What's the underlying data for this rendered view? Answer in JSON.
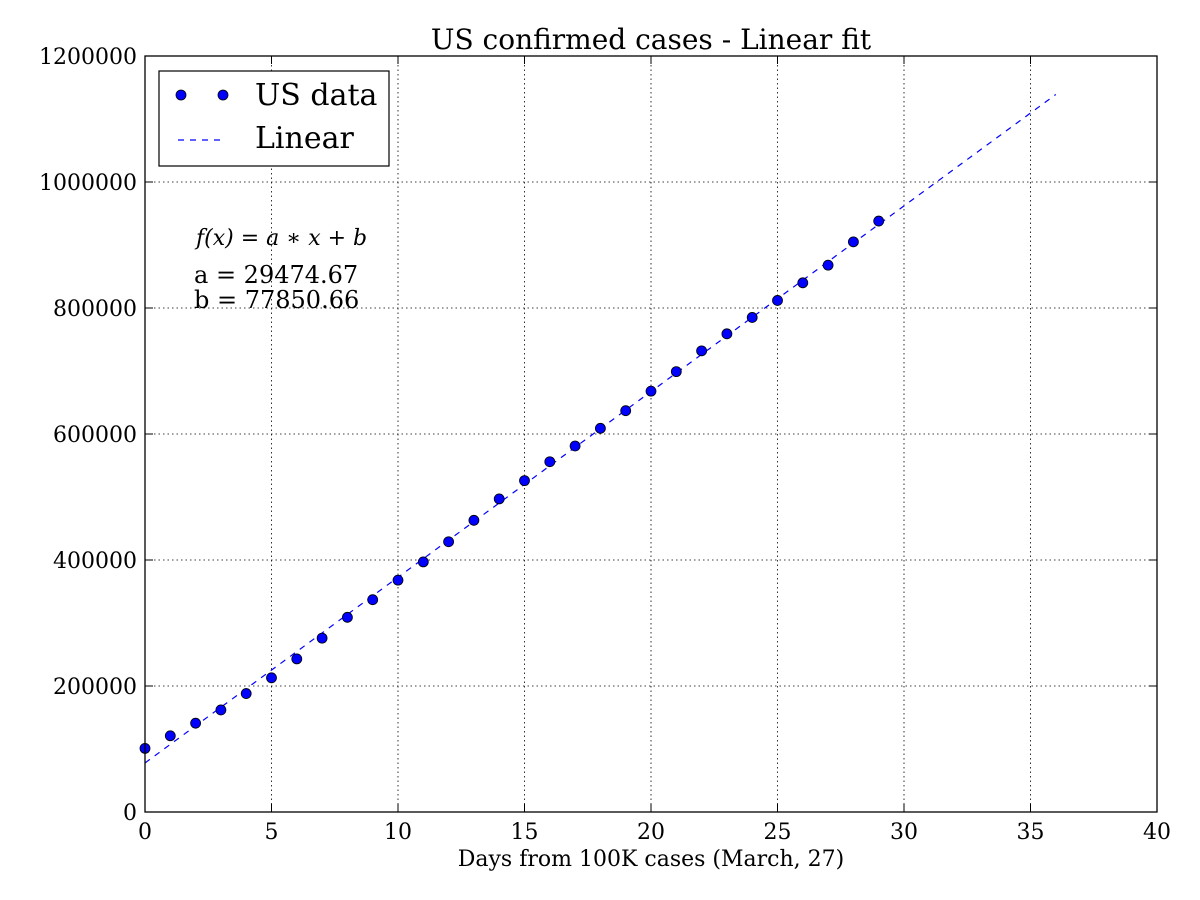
{
  "chart_data": {
    "type": "scatter",
    "title": "US confirmed cases - Linear fit",
    "xlabel": "Days from 100K cases (March, 27)",
    "ylabel": "",
    "xlim": [
      0,
      40
    ],
    "ylim": [
      0,
      1200000
    ],
    "x_ticks": [
      "0",
      "5",
      "10",
      "15",
      "20",
      "25",
      "30",
      "35",
      "40"
    ],
    "y_ticks": [
      "0",
      "200000",
      "400000",
      "600000",
      "800000",
      "1000000",
      "1200000"
    ],
    "grid": true,
    "legend_position": "top-left",
    "series": [
      {
        "name": "US data",
        "style": "markers",
        "color": "#0000ff",
        "x": [
          0,
          1,
          2,
          3,
          4,
          5,
          6,
          7,
          8,
          9,
          10,
          11,
          12,
          13,
          14,
          15,
          16,
          17,
          18,
          19,
          20,
          21,
          22,
          23,
          24,
          25,
          26,
          27,
          28,
          29
        ],
        "values": [
          101000,
          121000,
          141000,
          162000,
          188000,
          213000,
          243000,
          276000,
          309000,
          337000,
          368000,
          397000,
          429000,
          463000,
          497000,
          526000,
          556000,
          581000,
          609000,
          637000,
          668000,
          699000,
          732000,
          759000,
          785000,
          812000,
          840000,
          868000,
          905000,
          938000
        ]
      },
      {
        "name": "Linear",
        "style": "dashed-line",
        "color": "#0000ff",
        "x": [
          0,
          36
        ],
        "values": [
          77850.66,
          1138938.78
        ]
      }
    ],
    "annotations": {
      "formula": "f(x) = a ∗ x + b",
      "a_text": "a = 29474.67",
      "b_text": "b = 77850.66"
    }
  }
}
